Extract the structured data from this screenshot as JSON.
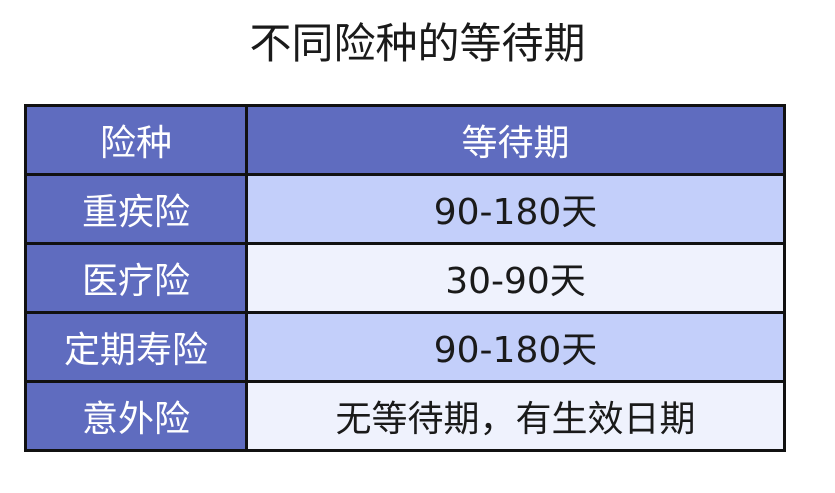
{
  "title": "不同险种的等待期",
  "colors": {
    "header": "#5f6cbf",
    "row_light_blue": "#c3cffa",
    "row_pale": "#eff2fd",
    "border": "#111111"
  },
  "table": {
    "headers": [
      "险种",
      "等待期"
    ],
    "rows": [
      {
        "type": "重疾险",
        "period": "90-180天"
      },
      {
        "type": "医疗险",
        "period": "30-90天"
      },
      {
        "type": "定期寿险",
        "period": "90-180天"
      },
      {
        "type": "意外险",
        "period": "无等待期，有生效日期"
      }
    ]
  }
}
